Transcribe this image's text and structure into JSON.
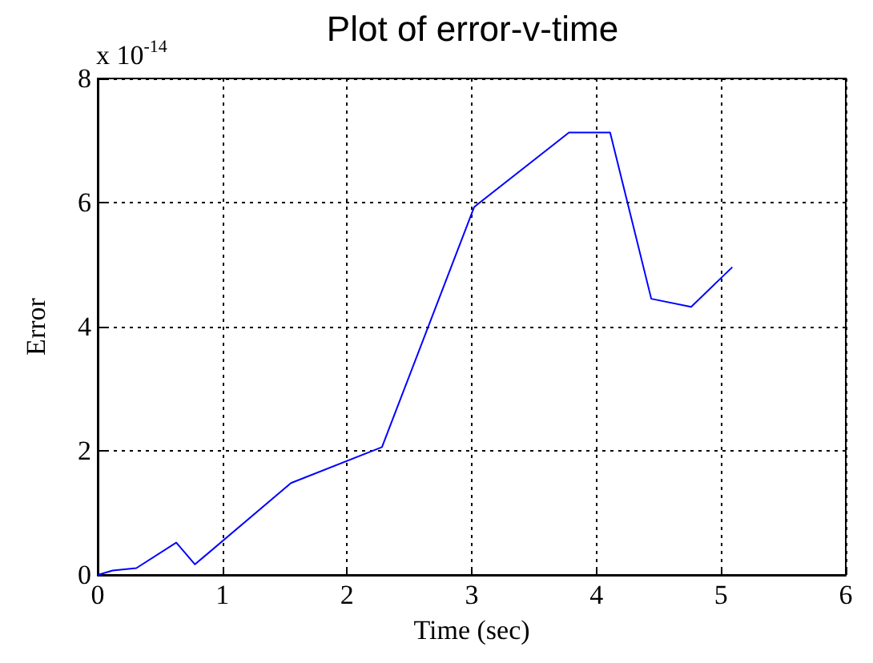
{
  "chart_data": {
    "type": "line",
    "title": "Plot of error-v-time",
    "xlabel": "Time (sec)",
    "ylabel": "Error",
    "annotations": [
      "x 10$^{-14}$"
    ],
    "x": [
      0,
      0.12,
      0.31,
      0.63,
      0.78,
      1.55,
      2.28,
      3.02,
      3.78,
      4.11,
      4.44,
      4.76,
      5.09
    ],
    "series": [
      {
        "color": "#0000ff",
        "values": [
          0,
          0.07,
          0.11,
          0.52,
          0.17,
          1.48,
          2.06,
          5.93,
          7.13,
          7.13,
          4.45,
          4.32,
          4.96
        ]
      }
    ],
    "xlim": [
      0,
      6
    ],
    "xticks": [
      0,
      1,
      2,
      3,
      4,
      5,
      6
    ],
    "ylim": [
      0,
      8
    ],
    "yticks": [
      0,
      2,
      4,
      6,
      8
    ],
    "grid": true,
    "marker": "none",
    "line_style": "solid"
  }
}
